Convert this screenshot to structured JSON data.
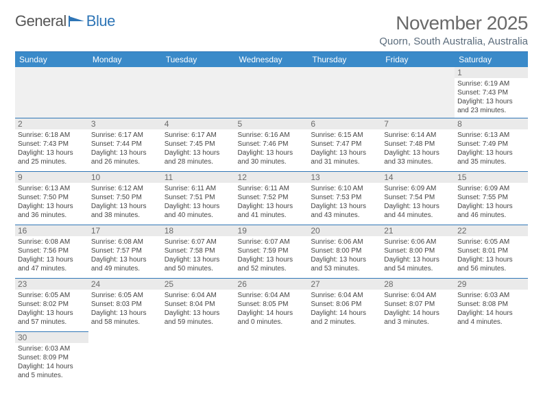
{
  "logo": {
    "text1": "General",
    "text2": "Blue"
  },
  "title": "November 2025",
  "location": "Quorn, South Australia, Australia",
  "colors": {
    "header_bg": "#3a8ac9",
    "header_text": "#ffffff",
    "rule": "#2e75b6",
    "daynum_bg": "#eaeaea",
    "title_text": "#6a6a6a"
  },
  "dayHeaders": [
    "Sunday",
    "Monday",
    "Tuesday",
    "Wednesday",
    "Thursday",
    "Friday",
    "Saturday"
  ],
  "weeks": [
    [
      null,
      null,
      null,
      null,
      null,
      null,
      {
        "n": "1",
        "sr": "6:19 AM",
        "ss": "7:43 PM",
        "dl": "13 hours and 23 minutes."
      }
    ],
    [
      {
        "n": "2",
        "sr": "6:18 AM",
        "ss": "7:43 PM",
        "dl": "13 hours and 25 minutes."
      },
      {
        "n": "3",
        "sr": "6:17 AM",
        "ss": "7:44 PM",
        "dl": "13 hours and 26 minutes."
      },
      {
        "n": "4",
        "sr": "6:17 AM",
        "ss": "7:45 PM",
        "dl": "13 hours and 28 minutes."
      },
      {
        "n": "5",
        "sr": "6:16 AM",
        "ss": "7:46 PM",
        "dl": "13 hours and 30 minutes."
      },
      {
        "n": "6",
        "sr": "6:15 AM",
        "ss": "7:47 PM",
        "dl": "13 hours and 31 minutes."
      },
      {
        "n": "7",
        "sr": "6:14 AM",
        "ss": "7:48 PM",
        "dl": "13 hours and 33 minutes."
      },
      {
        "n": "8",
        "sr": "6:13 AM",
        "ss": "7:49 PM",
        "dl": "13 hours and 35 minutes."
      }
    ],
    [
      {
        "n": "9",
        "sr": "6:13 AM",
        "ss": "7:50 PM",
        "dl": "13 hours and 36 minutes."
      },
      {
        "n": "10",
        "sr": "6:12 AM",
        "ss": "7:50 PM",
        "dl": "13 hours and 38 minutes."
      },
      {
        "n": "11",
        "sr": "6:11 AM",
        "ss": "7:51 PM",
        "dl": "13 hours and 40 minutes."
      },
      {
        "n": "12",
        "sr": "6:11 AM",
        "ss": "7:52 PM",
        "dl": "13 hours and 41 minutes."
      },
      {
        "n": "13",
        "sr": "6:10 AM",
        "ss": "7:53 PM",
        "dl": "13 hours and 43 minutes."
      },
      {
        "n": "14",
        "sr": "6:09 AM",
        "ss": "7:54 PM",
        "dl": "13 hours and 44 minutes."
      },
      {
        "n": "15",
        "sr": "6:09 AM",
        "ss": "7:55 PM",
        "dl": "13 hours and 46 minutes."
      }
    ],
    [
      {
        "n": "16",
        "sr": "6:08 AM",
        "ss": "7:56 PM",
        "dl": "13 hours and 47 minutes."
      },
      {
        "n": "17",
        "sr": "6:08 AM",
        "ss": "7:57 PM",
        "dl": "13 hours and 49 minutes."
      },
      {
        "n": "18",
        "sr": "6:07 AM",
        "ss": "7:58 PM",
        "dl": "13 hours and 50 minutes."
      },
      {
        "n": "19",
        "sr": "6:07 AM",
        "ss": "7:59 PM",
        "dl": "13 hours and 52 minutes."
      },
      {
        "n": "20",
        "sr": "6:06 AM",
        "ss": "8:00 PM",
        "dl": "13 hours and 53 minutes."
      },
      {
        "n": "21",
        "sr": "6:06 AM",
        "ss": "8:00 PM",
        "dl": "13 hours and 54 minutes."
      },
      {
        "n": "22",
        "sr": "6:05 AM",
        "ss": "8:01 PM",
        "dl": "13 hours and 56 minutes."
      }
    ],
    [
      {
        "n": "23",
        "sr": "6:05 AM",
        "ss": "8:02 PM",
        "dl": "13 hours and 57 minutes."
      },
      {
        "n": "24",
        "sr": "6:05 AM",
        "ss": "8:03 PM",
        "dl": "13 hours and 58 minutes."
      },
      {
        "n": "25",
        "sr": "6:04 AM",
        "ss": "8:04 PM",
        "dl": "13 hours and 59 minutes."
      },
      {
        "n": "26",
        "sr": "6:04 AM",
        "ss": "8:05 PM",
        "dl": "14 hours and 0 minutes."
      },
      {
        "n": "27",
        "sr": "6:04 AM",
        "ss": "8:06 PM",
        "dl": "14 hours and 2 minutes."
      },
      {
        "n": "28",
        "sr": "6:04 AM",
        "ss": "8:07 PM",
        "dl": "14 hours and 3 minutes."
      },
      {
        "n": "29",
        "sr": "6:03 AM",
        "ss": "8:08 PM",
        "dl": "14 hours and 4 minutes."
      }
    ],
    [
      {
        "n": "30",
        "sr": "6:03 AM",
        "ss": "8:09 PM",
        "dl": "14 hours and 5 minutes."
      },
      null,
      null,
      null,
      null,
      null,
      null
    ]
  ],
  "labels": {
    "sunrise": "Sunrise: ",
    "sunset": "Sunset: ",
    "daylight": "Daylight: "
  }
}
